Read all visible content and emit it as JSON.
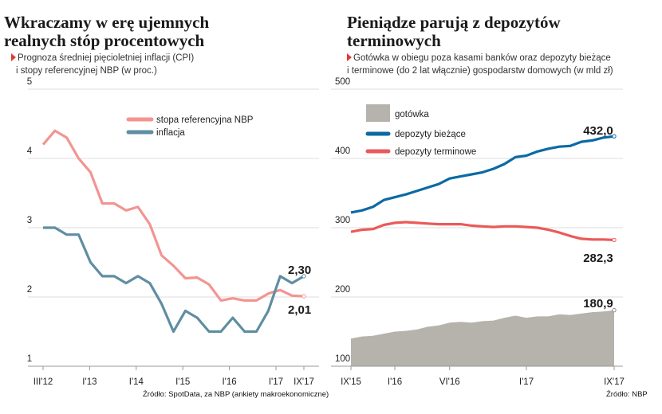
{
  "charts": [
    {
      "title_line1": "Wkraczamy w erę ujemnych",
      "title_line2": "realnych stóp procentowych",
      "subtitle_line1": "Prognoza średniej pięcioletniej inflacji (CPI)",
      "subtitle_line2": "i stopy referencyjnej NBP (w proc.)",
      "source": "Źródło: SpotData, za NBP (ankiety makroekonomiczne)"
    },
    {
      "title_line1": "Pieniądze parują z depozytów",
      "title_line2": "terminowych",
      "subtitle_line1": "Gotówka w obiegu poza kasami banków oraz depozyty bieżące",
      "subtitle_line2": "i terminowe (do 2 lat włącznie) gospodarstw domowych (w mld zł)",
      "source": "Źródło: NBP"
    }
  ],
  "colors": {
    "pink": "#f29591",
    "steel": "#5f8ea2",
    "blue": "#0b6aa3",
    "red": "#ea5a59",
    "gray": "#b5b3ab",
    "accent": "#e23a32"
  },
  "chart_data": [
    {
      "type": "line",
      "x_tick_labels": [
        "III'12",
        "I'13",
        "I'14",
        "I'15",
        "I'16",
        "I'17",
        "IX'17"
      ],
      "x_tick_index": [
        0,
        5,
        10,
        15,
        20,
        25,
        28
      ],
      "yticks": [
        1,
        2,
        3,
        4,
        5
      ],
      "ylim": [
        1,
        5
      ],
      "grid": true,
      "legend_position": "top-center",
      "series": [
        {
          "name": "stopa referencyjna NBP",
          "color": "#f29591",
          "values": [
            4.2,
            4.4,
            4.3,
            4.0,
            3.8,
            3.35,
            3.35,
            3.25,
            3.3,
            3.05,
            2.6,
            2.45,
            2.27,
            2.28,
            2.18,
            1.95,
            1.98,
            1.95,
            1.95,
            2.05,
            2.1,
            2.02,
            2.01
          ],
          "end_label": "2,01"
        },
        {
          "name": "inflacja",
          "color": "#5f8ea2",
          "values": [
            3.0,
            3.0,
            2.9,
            2.9,
            2.5,
            2.3,
            2.3,
            2.2,
            2.3,
            2.2,
            1.9,
            1.5,
            1.8,
            1.7,
            1.5,
            1.5,
            1.7,
            1.5,
            1.5,
            1.8,
            2.3,
            2.2,
            2.3
          ],
          "end_label": "2,30"
        }
      ]
    },
    {
      "type": "line",
      "x_tick_labels": [
        "IX'15",
        "I'16",
        "VI'16",
        "I'17",
        "IX'17"
      ],
      "x_tick_index": [
        0,
        4,
        9,
        16,
        24
      ],
      "yticks": [
        100,
        200,
        300,
        400,
        500
      ],
      "ylim": [
        100,
        500
      ],
      "grid": true,
      "legend_position": "top-left",
      "series": [
        {
          "name": "gotówka",
          "kind": "area",
          "color": "#b5b3ab",
          "values": [
            140,
            143,
            144,
            147,
            150,
            151,
            153,
            157,
            159,
            163,
            164,
            163,
            165,
            166,
            170,
            173,
            170,
            172,
            172,
            175,
            174,
            176,
            178,
            179,
            180.9
          ],
          "end_label": "180,9"
        },
        {
          "name": "depozyty bieżące",
          "kind": "line",
          "color": "#0b6aa3",
          "values": [
            322,
            325,
            330,
            340,
            344,
            348,
            353,
            358,
            363,
            371,
            374,
            377,
            380,
            385,
            392,
            402,
            404,
            410,
            414,
            417,
            418,
            424,
            426,
            430,
            432.0
          ],
          "end_label": "432,0"
        },
        {
          "name": "depozyty terminowe",
          "kind": "line",
          "color": "#ea5a59",
          "values": [
            294,
            297,
            298,
            304,
            307,
            308,
            307,
            306,
            305,
            305,
            305,
            303,
            302,
            301,
            302,
            302,
            301,
            300,
            297,
            293,
            288,
            284,
            283,
            283,
            282.3
          ],
          "end_label": "282,3"
        }
      ]
    }
  ]
}
